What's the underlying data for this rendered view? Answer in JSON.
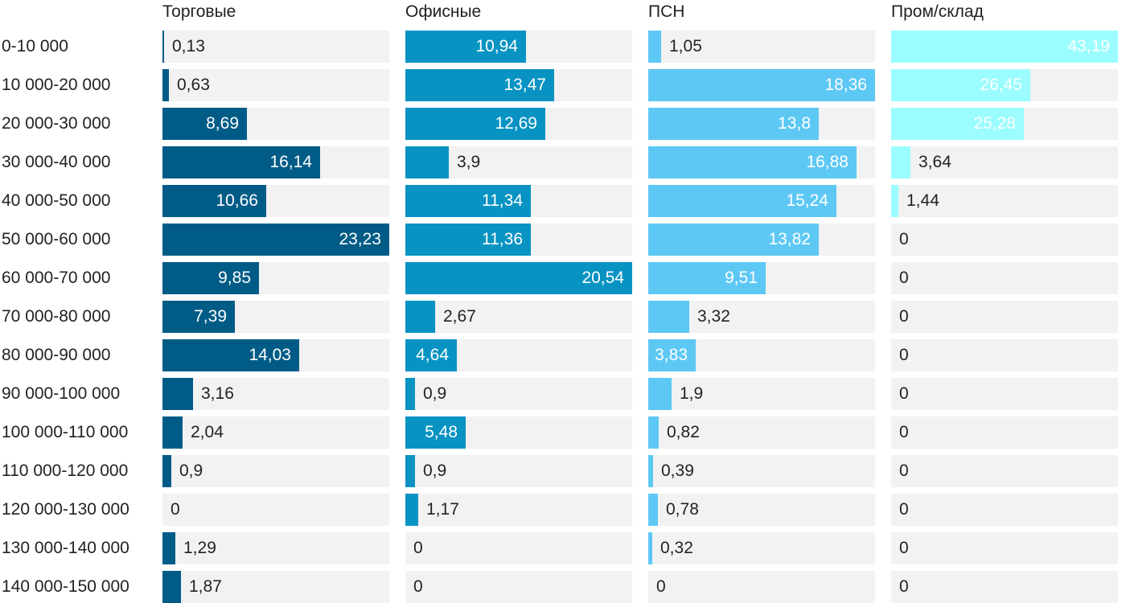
{
  "chart_data": {
    "type": "bar",
    "orientation": "horizontal",
    "categories": [
      "0-10 000",
      "10 000-20 000",
      "20 000-30 000",
      "30 000-40 000",
      "40 000-50 000",
      "50 000-60 000",
      "60 000-70 000",
      "70 000-80 000",
      "80 000-90 000",
      "90 000-100 000",
      "100 000-110 000",
      "110 000-120 000",
      "120 000-130 000",
      "130 000-140 000",
      "140 000-150 000"
    ],
    "series": [
      {
        "name": "Торговые",
        "color": "#005c87",
        "xlim": [
          0,
          23.23
        ],
        "values": [
          0.13,
          0.63,
          8.69,
          16.14,
          10.66,
          23.23,
          9.85,
          7.39,
          14.03,
          3.16,
          2.04,
          0.9,
          0,
          1.29,
          1.87
        ],
        "labels": [
          "0,13",
          "0,63",
          "8,69",
          "16,14",
          "10,66",
          "23,23",
          "9,85",
          "7,39",
          "14,03",
          "3,16",
          "2,04",
          "0,9",
          "0",
          "1,29",
          "1,87"
        ]
      },
      {
        "name": "Офисные",
        "color": "#0893c2",
        "xlim": [
          0,
          20.54
        ],
        "values": [
          10.94,
          13.47,
          12.69,
          3.9,
          11.34,
          11.36,
          20.54,
          2.67,
          4.64,
          0.9,
          5.48,
          0.9,
          1.17,
          0,
          0
        ],
        "labels": [
          "10,94",
          "13,47",
          "12,69",
          "3,9",
          "11,34",
          "11,36",
          "20,54",
          "2,67",
          "4,64",
          "0,9",
          "5,48",
          "0,9",
          "1,17",
          "0",
          "0"
        ]
      },
      {
        "name": "ПСН",
        "color": "#5ec8f5",
        "xlim": [
          0,
          18.36
        ],
        "values": [
          1.05,
          18.36,
          13.8,
          16.88,
          15.24,
          13.82,
          9.51,
          3.32,
          3.83,
          1.9,
          0.82,
          0.39,
          0.78,
          0.32,
          0
        ],
        "labels": [
          "1,05",
          "18,36",
          "13,8",
          "16,88",
          "15,24",
          "13,82",
          "9,51",
          "3,32",
          "3,83",
          "1,9",
          "0,82",
          "0,39",
          "0,78",
          "0,32",
          "0"
        ]
      },
      {
        "name": "Пром/склад",
        "color": "#9bfdff",
        "xlim": [
          0,
          43.19
        ],
        "values": [
          43.19,
          26.45,
          25.28,
          3.64,
          1.44,
          0,
          0,
          0,
          0,
          0,
          0,
          0,
          0,
          0,
          0
        ],
        "labels": [
          "43,19",
          "26,45",
          "25,28",
          "3,64",
          "1,44",
          "0",
          "0",
          "0",
          "0",
          "0",
          "0",
          "0",
          "0",
          "0",
          "0"
        ]
      }
    ],
    "track_color": "#f2f2f2",
    "grid": false,
    "legend": "panel-titles-top"
  }
}
